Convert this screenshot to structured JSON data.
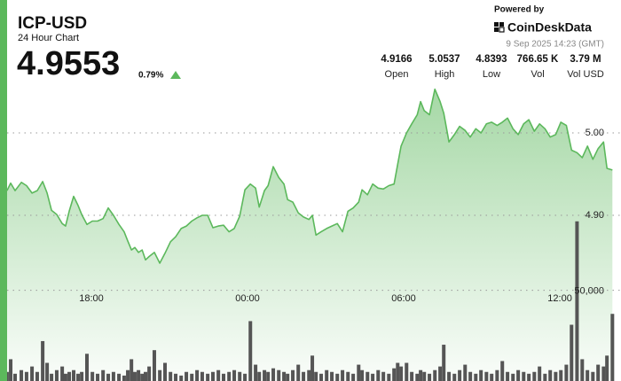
{
  "chart_data": {
    "type": "area",
    "title": "ICP-USD",
    "subtitle": "24 Hour Chart",
    "price": 4.9553,
    "change": "0.79%",
    "powered_by": "Powered by",
    "brand": "CoinDeskData",
    "timestamp": "9 Sep 2025 14:23 (GMT)",
    "stats": [
      {
        "label": "Open",
        "value": 4.9166
      },
      {
        "label": "High",
        "value": 5.0537
      },
      {
        "label": "Low",
        "value": 4.8393
      },
      {
        "label": "Vol",
        "value": "766.65 K"
      },
      {
        "label": "Vol USD",
        "value": "3.79 M"
      }
    ],
    "x": [
      14.76,
      14.9,
      15.07,
      15.31,
      15.51,
      15.72,
      15.92,
      16.13,
      16.3,
      16.47,
      16.67,
      16.88,
      17.01,
      17.15,
      17.32,
      17.49,
      17.63,
      17.83,
      18.04,
      18.24,
      18.45,
      18.65,
      18.85,
      19.06,
      19.26,
      19.4,
      19.54,
      19.67,
      19.81,
      19.95,
      20.08,
      20.22,
      20.42,
      20.63,
      20.83,
      21.04,
      21.24,
      21.45,
      21.65,
      21.86,
      22.06,
      22.26,
      22.47,
      22.67,
      22.88,
      23.08,
      23.29,
      23.49,
      23.7,
      23.9,
      24.11,
      24.31,
      24.45,
      24.65,
      24.79,
      24.99,
      25.2,
      25.4,
      25.54,
      25.74,
      25.95,
      26.15,
      26.36,
      26.49,
      26.63,
      26.83,
      27.04,
      27.24,
      27.45,
      27.65,
      27.86,
      28.06,
      28.27,
      28.4,
      28.61,
      28.81,
      29.02,
      29.22,
      29.43,
      29.63,
      29.77,
      29.9,
      30.11,
      30.31,
      30.52,
      30.65,
      30.79,
      30.99,
      31.2,
      31.4,
      31.54,
      31.74,
      31.95,
      32.15,
      32.36,
      32.56,
      32.77,
      32.97,
      33.18,
      33.38,
      33.59,
      33.79,
      33.99,
      34.2,
      34.4,
      34.61,
      34.81,
      35.02,
      35.22,
      35.43,
      35.63,
      35.84,
      36.04,
      36.25,
      36.45,
      36.66,
      36.86,
      37.06,
      37.27,
      37.47,
      37.68,
      37.81,
      38.02
    ],
    "series": [
      {
        "type": "area",
        "color": "#5cb85c",
        "values": [
          4.93,
          4.939,
          4.93,
          4.94,
          4.936,
          4.927,
          4.93,
          4.941,
          4.927,
          4.906,
          4.901,
          4.89,
          4.887,
          4.905,
          4.923,
          4.912,
          4.901,
          4.889,
          4.893,
          4.893,
          4.896,
          4.909,
          4.9,
          4.889,
          4.88,
          4.869,
          4.858,
          4.861,
          4.855,
          4.858,
          4.846,
          4.85,
          4.855,
          4.842,
          4.854,
          4.868,
          4.874,
          4.884,
          4.887,
          4.893,
          4.897,
          4.9,
          4.9,
          4.885,
          4.887,
          4.888,
          4.88,
          4.884,
          4.899,
          4.931,
          4.938,
          4.933,
          4.91,
          4.93,
          4.936,
          4.959,
          4.946,
          4.938,
          4.919,
          4.916,
          4.903,
          4.898,
          4.895,
          4.9,
          4.876,
          4.88,
          4.884,
          4.887,
          4.89,
          4.88,
          4.905,
          4.909,
          4.916,
          4.931,
          4.925,
          4.938,
          4.933,
          4.932,
          4.936,
          4.938,
          4.962,
          4.984,
          5.0,
          5.011,
          5.022,
          5.038,
          5.027,
          5.022,
          5.053,
          5.038,
          5.024,
          4.989,
          4.998,
          5.008,
          5.003,
          4.995,
          5.005,
          5.0,
          5.011,
          5.013,
          5.009,
          5.013,
          5.018,
          5.005,
          4.998,
          5.011,
          5.016,
          5.002,
          5.011,
          5.005,
          4.995,
          4.998,
          5.013,
          5.009,
          4.979,
          4.976,
          4.97,
          4.984,
          4.968,
          4.981,
          4.989,
          4.957,
          4.955
        ]
      },
      {
        "type": "bar",
        "axis": "y2",
        "color": "#555555",
        "values": [
          5000,
          12000,
          4000,
          6000,
          5000,
          8000,
          5000,
          22000,
          10000,
          4000,
          6000,
          8000,
          4000,
          5000,
          6000,
          4000,
          5000,
          15000,
          5000,
          4000,
          6000,
          4000,
          5000,
          4000,
          3000,
          6000,
          12000,
          5000,
          6000,
          4000,
          5000,
          8000,
          17000,
          6000,
          10000,
          5000,
          4000,
          3000,
          5000,
          4000,
          6000,
          5000,
          4000,
          5000,
          6000,
          4000,
          5000,
          6000,
          5000,
          4000,
          33000,
          9000,
          5000,
          6000,
          5000,
          7000,
          6000,
          5000,
          4000,
          6000,
          9000,
          5000,
          6000,
          14000,
          5000,
          4000,
          6000,
          5000,
          4000,
          6000,
          5000,
          4000,
          9000,
          6000,
          5000,
          4000,
          6000,
          5000,
          4000,
          7000,
          10000,
          8000,
          10000,
          5000,
          4000,
          6000,
          5000,
          4000,
          6000,
          8000,
          20000,
          5000,
          4000,
          6000,
          9000,
          5000,
          4000,
          6000,
          5000,
          4000,
          6000,
          11000,
          5000,
          4000,
          6000,
          5000,
          4000,
          5000,
          8000,
          4000,
          6000,
          5000,
          6000,
          9000,
          31000,
          88000,
          12000,
          6000,
          5000,
          9000,
          8000,
          14000,
          37000
        ]
      }
    ],
    "xlim": [
      14.49,
      38.35
    ],
    "xticks": [
      {
        "value": 18,
        "label": "18:00"
      },
      {
        "value": 24,
        "label": "00:00"
      },
      {
        "value": 30,
        "label": "06:00"
      },
      {
        "value": 36,
        "label": "12:00"
      }
    ],
    "ylim": [
      4.8065,
      5.0645
    ],
    "yticks": [
      {
        "value": 5.0,
        "label": "5.00"
      },
      {
        "value": 4.9,
        "label": "4.90"
      }
    ],
    "y2lim": [
      0,
      210000
    ],
    "y2ticks": [
      {
        "value": 50000,
        "label": "50,000"
      }
    ],
    "grid": true
  }
}
